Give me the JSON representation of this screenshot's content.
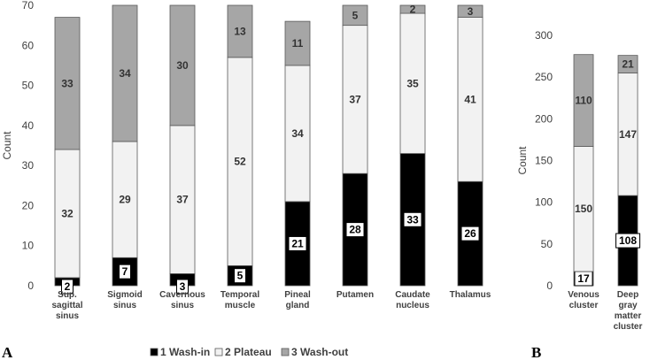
{
  "colors": {
    "wash_in": "#000000",
    "plateau": "#f2f2f2",
    "wash_out": "#a6a6a6",
    "outline": "#595959",
    "axis_text": "#404040"
  },
  "chart_data": [
    {
      "type": "bar",
      "stacked": true,
      "panel_label": "A",
      "ylabel": "Count",
      "ylim": [
        0,
        70
      ],
      "yticks": [
        "0",
        "10",
        "20",
        "30",
        "40",
        "50",
        "60",
        "70"
      ],
      "categories": [
        [
          "Sup.",
          "sagittal",
          "sinus"
        ],
        [
          "Sigmoid",
          "sinus"
        ],
        [
          "Cavernous",
          "sinus"
        ],
        [
          "Temporal",
          "muscle"
        ],
        [
          "Pineal",
          "gland"
        ],
        [
          "Putamen"
        ],
        [
          "Caudate",
          "nucleus"
        ],
        [
          "Thalamus"
        ]
      ],
      "series": [
        {
          "name": "1 Wash-in",
          "values": [
            2,
            7,
            3,
            5,
            21,
            28,
            33,
            26
          ]
        },
        {
          "name": "2 Plateau",
          "values": [
            32,
            29,
            37,
            52,
            34,
            37,
            35,
            41
          ]
        },
        {
          "name": "3 Wash-out",
          "values": [
            33,
            34,
            30,
            13,
            11,
            5,
            2,
            3
          ]
        }
      ],
      "grid": false
    },
    {
      "type": "bar",
      "stacked": true,
      "panel_label": "B",
      "ylabel": "Count",
      "ylim": [
        0,
        300
      ],
      "yticks": [
        "0",
        "50",
        "100",
        "150",
        "200",
        "250",
        "300"
      ],
      "categories": [
        [
          "Venous",
          "cluster"
        ],
        [
          "Deep",
          "gray",
          "matter",
          "cluster"
        ]
      ],
      "series": [
        {
          "name": "1 Wash-in",
          "values": [
            17,
            108
          ]
        },
        {
          "name": "2 Plateau",
          "values": [
            150,
            147
          ]
        },
        {
          "name": "3 Wash-out",
          "values": [
            110,
            21
          ]
        }
      ],
      "grid": false
    }
  ],
  "legend": {
    "position": "bottom",
    "items": [
      "1 Wash-in",
      "2 Plateau",
      "3 Wash-out"
    ]
  }
}
